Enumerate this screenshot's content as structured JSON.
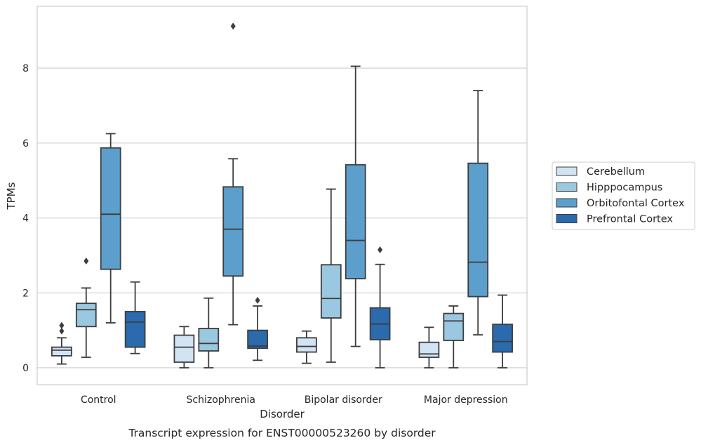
{
  "chart_data": {
    "type": "boxplot",
    "caption": "Transcript expression for ENST00000523260 by disorder",
    "xlabel": "Disorder",
    "ylabel": "TPMs",
    "ylim": [
      -0.45,
      9.65
    ],
    "yticks": [
      0,
      2,
      4,
      6,
      8
    ],
    "grid": true,
    "legend_position": "right",
    "categories": [
      "Control",
      "Schizophrenia",
      "Bipolar disorder",
      "Major depression"
    ],
    "series": [
      {
        "name": "Cerebellum",
        "color": "#d2e3f3",
        "boxes": [
          {
            "whislo": 0.1,
            "q1": 0.32,
            "med": 0.47,
            "q3": 0.55,
            "whishi": 0.8,
            "fliers": [
              0.98,
              1.13
            ]
          },
          {
            "whislo": 0.0,
            "q1": 0.15,
            "med": 0.55,
            "q3": 0.87,
            "whishi": 1.1,
            "fliers": []
          },
          {
            "whislo": 0.12,
            "q1": 0.42,
            "med": 0.57,
            "q3": 0.8,
            "whishi": 0.98,
            "fliers": []
          },
          {
            "whislo": 0.0,
            "q1": 0.28,
            "med": 0.37,
            "q3": 0.68,
            "whishi": 1.08,
            "fliers": []
          }
        ]
      },
      {
        "name": "Hipppocampus",
        "color": "#9ac8e0",
        "boxes": [
          {
            "whislo": 0.28,
            "q1": 1.1,
            "med": 1.55,
            "q3": 1.72,
            "whishi": 2.13,
            "fliers": [
              2.85
            ]
          },
          {
            "whislo": 0.0,
            "q1": 0.45,
            "med": 0.65,
            "q3": 1.05,
            "whishi": 1.86,
            "fliers": []
          },
          {
            "whislo": 0.15,
            "q1": 1.33,
            "med": 1.85,
            "q3": 2.75,
            "whishi": 4.77,
            "fliers": []
          },
          {
            "whislo": 0.0,
            "q1": 0.73,
            "med": 1.25,
            "q3": 1.45,
            "whishi": 1.65,
            "fliers": []
          }
        ]
      },
      {
        "name": "Orbitofontal Cortex",
        "color": "#5c9fcc",
        "boxes": [
          {
            "whislo": 1.2,
            "q1": 2.63,
            "med": 4.1,
            "q3": 5.87,
            "whishi": 6.25,
            "fliers": []
          },
          {
            "whislo": 1.15,
            "q1": 2.45,
            "med": 3.7,
            "q3": 4.83,
            "whishi": 5.58,
            "fliers": [
              9.12
            ]
          },
          {
            "whislo": 0.57,
            "q1": 2.38,
            "med": 3.4,
            "q3": 5.42,
            "whishi": 8.05,
            "fliers": []
          },
          {
            "whislo": 0.88,
            "q1": 1.9,
            "med": 2.82,
            "q3": 5.46,
            "whishi": 7.4,
            "fliers": []
          }
        ]
      },
      {
        "name": "Prefrontal Cortex",
        "color": "#2a6aad",
        "boxes": [
          {
            "whislo": 0.38,
            "q1": 0.55,
            "med": 1.22,
            "q3": 1.5,
            "whishi": 2.29,
            "fliers": []
          },
          {
            "whislo": 0.2,
            "q1": 0.52,
            "med": 0.58,
            "q3": 1.0,
            "whishi": 1.65,
            "fliers": [
              1.8
            ]
          },
          {
            "whislo": 0.0,
            "q1": 0.75,
            "med": 1.17,
            "q3": 1.6,
            "whishi": 2.76,
            "fliers": [
              3.15
            ]
          },
          {
            "whislo": 0.0,
            "q1": 0.42,
            "med": 0.7,
            "q3": 1.16,
            "whishi": 1.94,
            "fliers": []
          }
        ]
      }
    ]
  }
}
